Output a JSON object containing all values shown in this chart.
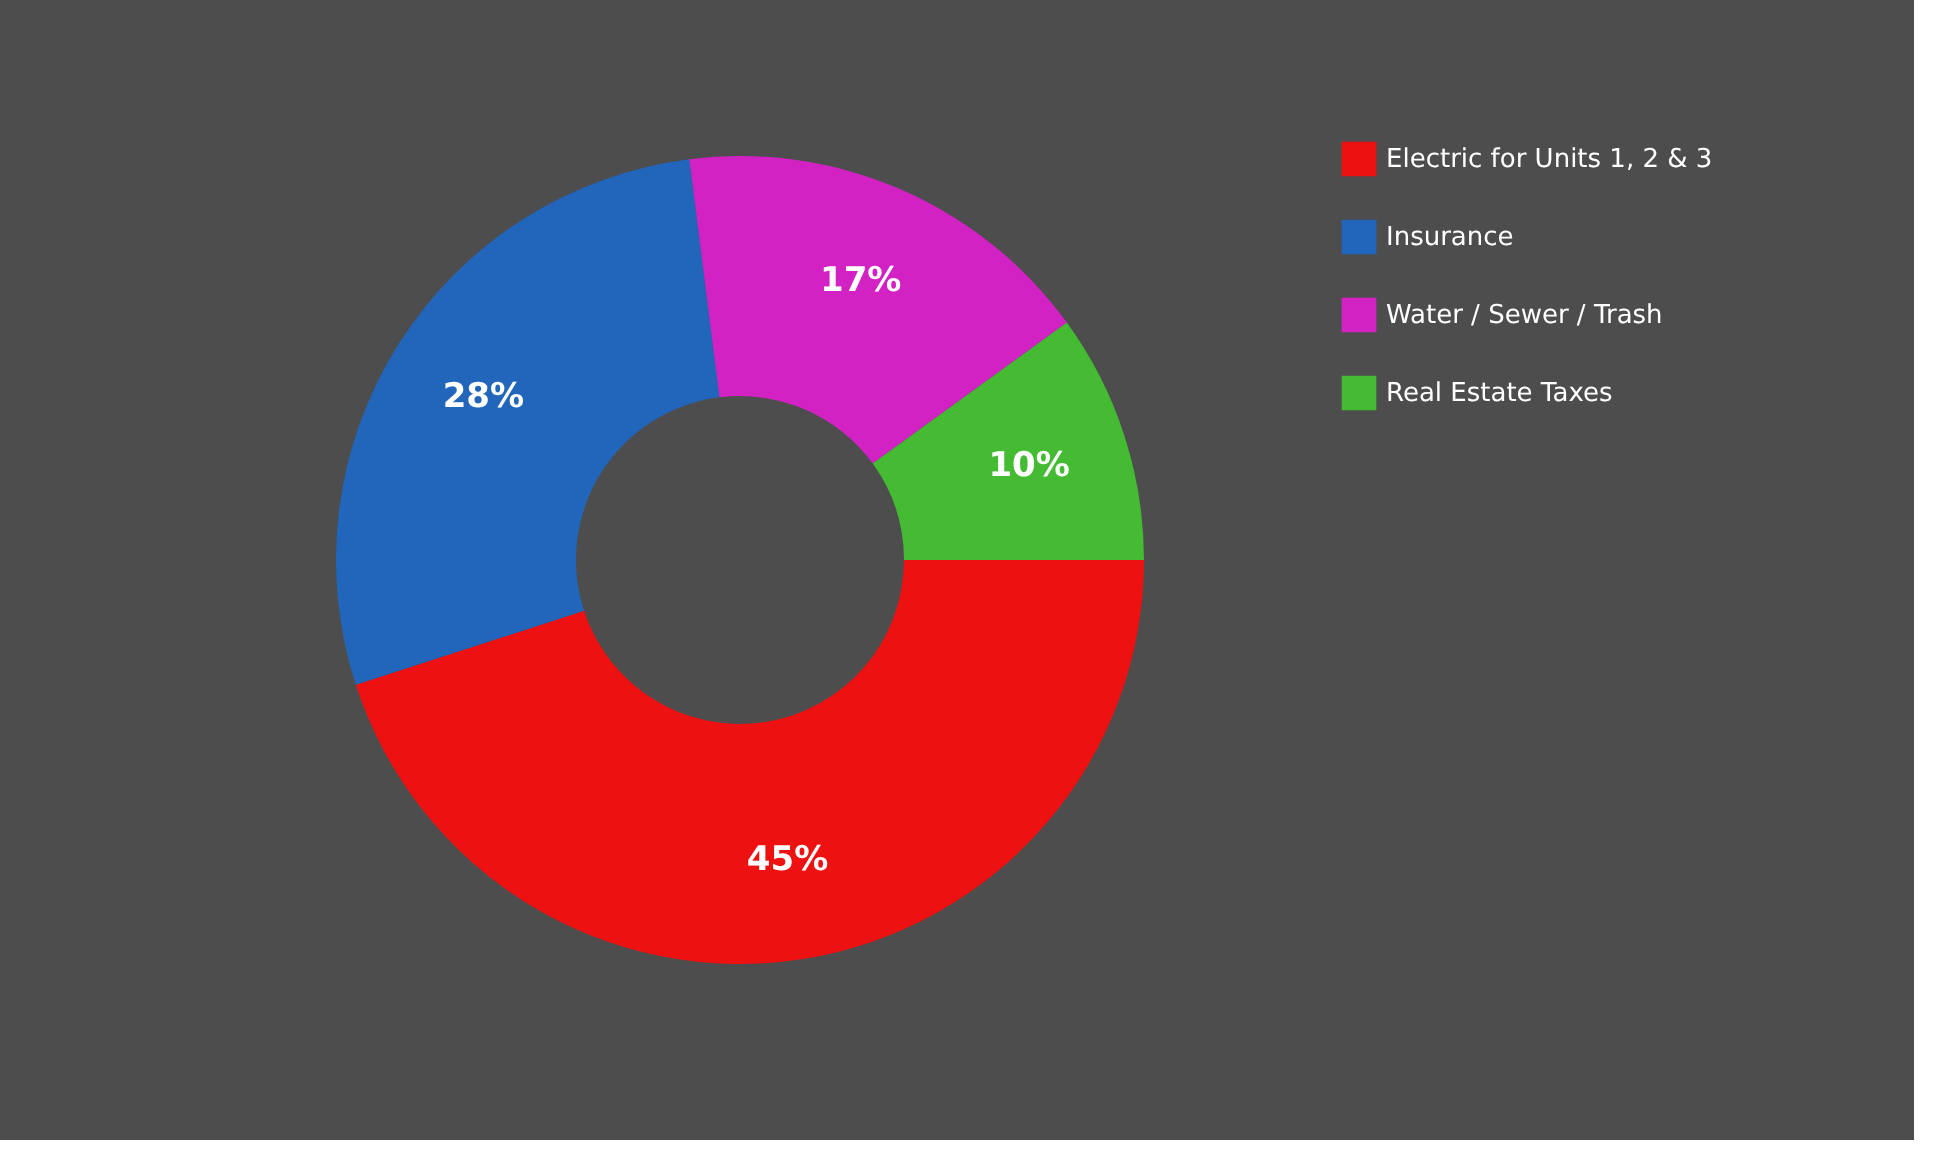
{
  "chart_data": {
    "type": "donut",
    "categories": [
      "Electric for Units 1, 2 & 3",
      "Insurance",
      "Water / Sewer / Trash",
      "Real Estate Taxes"
    ],
    "values": [
      45,
      28,
      17,
      10
    ],
    "colors": [
      "#ee1111",
      "#2266bb",
      "#d322c4",
      "#44bb33"
    ],
    "value_labels": [
      "45%",
      "28%",
      "17%",
      "10%"
    ],
    "legend": "right"
  }
}
